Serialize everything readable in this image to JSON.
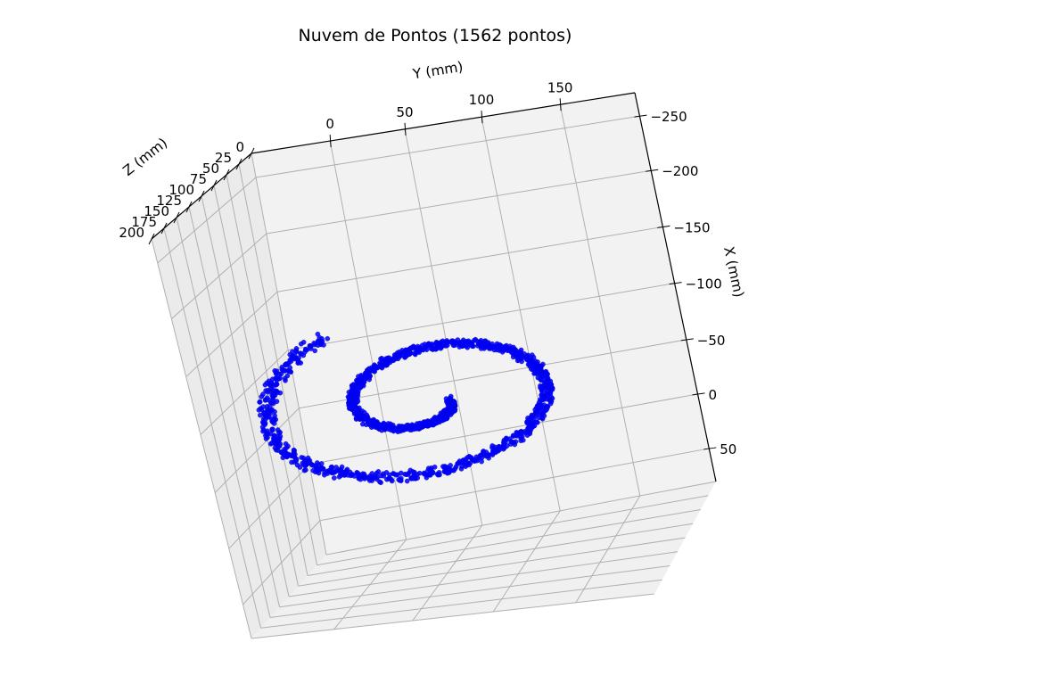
{
  "chart_data": {
    "type": "scatter3d",
    "title": "Nuvem de Pontos (1562 pontos)",
    "n_points": 1562,
    "color": "#0000ff",
    "xlabel": "X (mm)",
    "ylabel": "Y (mm)",
    "zlabel": "Z (mm)",
    "x_ticks": [
      "−250",
      "−200",
      "−150",
      "−100",
      "−50",
      "0",
      "50"
    ],
    "y_ticks": [
      "0",
      "50",
      "100",
      "150"
    ],
    "z_ticks": [
      "0",
      "25",
      "50",
      "75",
      "100",
      "125",
      "150",
      "175",
      "200"
    ],
    "xlim": [
      -290,
      80
    ],
    "ylim": [
      -20,
      195
    ],
    "zlim": [
      0,
      200
    ],
    "shape": "spiral",
    "spiral_center_mm": {
      "x": -40,
      "y": 70
    },
    "spiral_outer_radius_mm": 95,
    "spiral_inner_radius_mm": 12,
    "spiral_turns": 1.6
  }
}
